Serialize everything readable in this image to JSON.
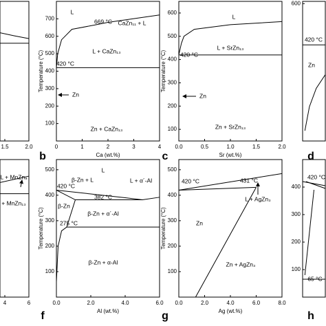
{
  "chart_data": [
    {
      "type": "line",
      "color": "#000000",
      "xlim": [
        1.4,
        2.0
      ],
      "ylim": [
        0,
        600
      ],
      "xticks": [
        1.5,
        {
          "value": 2.0,
          "label": "2.0"
        }
      ],
      "yticks": [],
      "series": [
        {
          "x": [
            1.4,
            2.0
          ],
          "values": [
            420,
            420
          ]
        },
        {
          "x": [
            1.4,
            1.7,
            2.0
          ],
          "values": [
            465,
            452,
            440
          ]
        }
      ],
      "annotations": []
    },
    {
      "type": "line",
      "label": "b",
      "color": "#000000",
      "xlabel": "Ca (wt.%)",
      "ylabel": "Temperature (°C)",
      "xlim": [
        0,
        4
      ],
      "ylim": [
        0,
        800
      ],
      "xticks": [
        0,
        1,
        2,
        3,
        4
      ],
      "yticks": [
        100,
        200,
        300,
        400,
        500,
        600,
        700
      ],
      "series": [
        {
          "x": [
            0,
            0.05,
            0.2,
            0.6,
            1.5,
            2,
            4
          ],
          "values": [
            420,
            500,
            580,
            640,
            665,
            680,
            722
          ]
        },
        {
          "x": [
            0,
            4
          ],
          "values": [
            420,
            420
          ]
        }
      ],
      "annotations": [
        "L",
        "669 °C",
        "CaZn₁₁ + L",
        "L + CaZn₁₃",
        "420 °C",
        "Zn",
        "Zn + CaZn₁₃"
      ]
    },
    {
      "type": "line",
      "label": "c",
      "color": "#000000",
      "xlabel": "Sr (wt.%)",
      "ylabel": "Temperature (°C)",
      "xlim": [
        0,
        2
      ],
      "ylim": [
        50,
        650
      ],
      "xticks": [
        {
          "value": 0.0,
          "label": "0.0"
        },
        0.5,
        {
          "value": 1.0,
          "label": "1.0"
        },
        1.5,
        {
          "value": 2.0,
          "label": "2.0"
        }
      ],
      "yticks": [
        100,
        200,
        300,
        400,
        500,
        600
      ],
      "series": [
        {
          "x": [
            0,
            0.05,
            0.1,
            0.3,
            1,
            2
          ],
          "values": [
            420,
            470,
            500,
            530,
            550,
            563
          ]
        },
        {
          "x": [
            0,
            2
          ],
          "values": [
            420,
            420
          ]
        }
      ],
      "annotations": [
        "L",
        "L + SrZn₁₃",
        "420 °C",
        "Zn",
        "Zn + SrZn₁₃"
      ]
    },
    {
      "type": "line",
      "label": "d",
      "color": "#000000",
      "xlim": [
        0,
        0.2
      ],
      "ylim": [
        0,
        610
      ],
      "xticks": [],
      "yticks": [
        600
      ],
      "series": [
        {
          "x": [
            0,
            0.2
          ],
          "values": [
            420,
            420
          ]
        },
        {
          "x": [
            0.02,
            0.06,
            0.12,
            0.2
          ],
          "values": [
            45,
            150,
            230,
            290
          ]
        }
      ],
      "annotations": [
        "420 °C",
        "Zn"
      ]
    },
    {
      "type": "line",
      "color": "#000000",
      "xlim": [
        3.6,
        6
      ],
      "ylim": [
        0,
        540
      ],
      "xticks": [
        4,
        6
      ],
      "yticks": [],
      "series": [
        {
          "x": [
            3.6,
            6
          ],
          "values": [
            406,
            406
          ]
        },
        {
          "x": [
            3.6,
            6
          ],
          "values": [
            450,
            475
          ]
        }
      ],
      "annotations": [
        "L + MnZn₉",
        "+ MnZn₁₃"
      ]
    },
    {
      "type": "line",
      "label": "f",
      "color": "#000000",
      "xlabel": "Al (wt.%)",
      "ylabel": "Temperature (°C)",
      "xlim": [
        0,
        6
      ],
      "ylim": [
        0,
        540
      ],
      "xticks": [
        {
          "value": 0.0,
          "label": "0.0"
        },
        {
          "value": 2.0,
          "label": "2.0"
        },
        {
          "value": 4.0,
          "label": "4.0"
        },
        {
          "value": 6.0,
          "label": "6.0"
        }
      ],
      "yticks": [
        100,
        200,
        300,
        400,
        500
      ],
      "series": [
        {
          "x": [
            0,
            2,
            4,
            5,
            6
          ],
          "values": [
            420,
            405,
            390,
            382,
            392
          ]
        },
        {
          "x": [
            0,
            1.1,
            5
          ],
          "values": [
            420,
            382,
            382
          ]
        },
        {
          "x": [
            0,
            0.1,
            0.3,
            0.6,
            1.1
          ],
          "values": [
            60,
            200,
            260,
            275,
            382
          ]
        },
        {
          "x": [
            0.6,
            6
          ],
          "values": [
            275,
            275
          ]
        }
      ],
      "annotations": [
        "420 °C",
        "L",
        "β-Zn + L",
        "L + α´-Al",
        "382 °C",
        "β-Zn",
        "β-Zn + α´-Al",
        "275 °C",
        "β-Zn + α-Al"
      ]
    },
    {
      "type": "line",
      "label": "g",
      "color": "#000000",
      "xlabel": "Ag (wt.%)",
      "ylabel": "Temperature (°C)",
      "xlim": [
        0,
        8
      ],
      "ylim": [
        0,
        540
      ],
      "xticks": [
        {
          "value": 0.0,
          "label": "0.0"
        },
        {
          "value": 2.0,
          "label": "2.0"
        },
        {
          "value": 4.0,
          "label": "4.0"
        },
        {
          "value": 6.0,
          "label": "6.0"
        },
        {
          "value": 8.0,
          "label": "8.0"
        }
      ],
      "yticks": [
        100,
        200,
        300,
        400,
        500
      ],
      "series": [
        {
          "x": [
            0,
            8
          ],
          "values": [
            420,
            485
          ]
        },
        {
          "x": [
            0,
            6
          ],
          "values": [
            420,
            431
          ]
        },
        {
          "x": [
            1.3,
            6
          ],
          "values": [
            0,
            431
          ]
        }
      ],
      "annotations": [
        "420 °C",
        "431 °C",
        "L + AgZn₃",
        "Zn",
        "Zn + AgZn₃"
      ]
    },
    {
      "type": "line",
      "label": "h",
      "color": "#000000",
      "xlim": [
        0,
        1
      ],
      "ylim": [
        0,
        500
      ],
      "xticks": [],
      "yticks": [
        100,
        200,
        300,
        400
      ],
      "series": [
        {
          "x": [
            0,
            1
          ],
          "values": [
            420,
            405
          ]
        },
        {
          "x": [
            0.15,
            1
          ],
          "values": [
            420,
            395
          ]
        },
        {
          "x": [
            0,
            1
          ],
          "values": [
            65,
            65
          ]
        },
        {
          "x": [
            0.1,
            0.5
          ],
          "values": [
            80,
            390
          ]
        }
      ],
      "annotations": [
        "420 °C",
        "65 °C"
      ]
    }
  ]
}
